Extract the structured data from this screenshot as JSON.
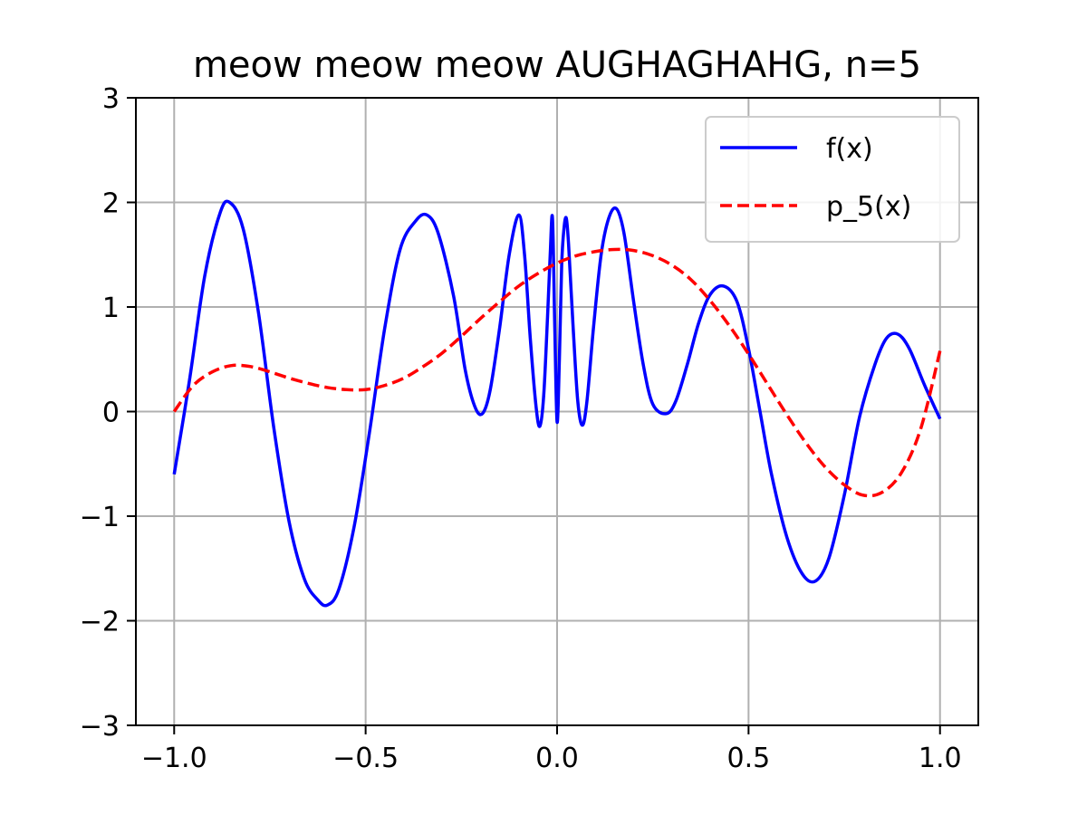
{
  "chart_data": {
    "type": "line",
    "title": "meow meow meow AUGHAGHAHG, n=5",
    "xlabel": "",
    "ylabel": "",
    "xlim": [
      -1.1,
      1.1
    ],
    "ylim": [
      -3,
      3
    ],
    "grid": true,
    "legend_position": "top-right",
    "x_ticks": [
      -1.0,
      -0.5,
      0.0,
      0.5,
      1.0
    ],
    "x_tick_labels": [
      "−1.0",
      "−0.5",
      "0.0",
      "0.5",
      "1.0"
    ],
    "y_ticks": [
      -3,
      -2,
      -1,
      0,
      1,
      2,
      3
    ],
    "y_tick_labels": [
      "−3",
      "−2",
      "−1",
      "0",
      "1",
      "2",
      "3"
    ],
    "series": [
      {
        "name": "f(x)",
        "color": "#0000ff",
        "style": "solid",
        "points": [
          [
            -1.0,
            -0.6
          ],
          [
            -0.96,
            0.3
          ],
          [
            -0.92,
            1.3
          ],
          [
            -0.88,
            1.9
          ],
          [
            -0.855,
            2.0
          ],
          [
            -0.82,
            1.75
          ],
          [
            -0.78,
            0.95
          ],
          [
            -0.74,
            -0.15
          ],
          [
            -0.7,
            -1.05
          ],
          [
            -0.66,
            -1.6
          ],
          [
            -0.625,
            -1.8
          ],
          [
            -0.6,
            -1.85
          ],
          [
            -0.57,
            -1.7
          ],
          [
            -0.53,
            -1.1
          ],
          [
            -0.49,
            -0.2
          ],
          [
            -0.45,
            0.8
          ],
          [
            -0.41,
            1.55
          ],
          [
            -0.37,
            1.82
          ],
          [
            -0.34,
            1.88
          ],
          [
            -0.31,
            1.7
          ],
          [
            -0.27,
            1.1
          ],
          [
            -0.24,
            0.4
          ],
          [
            -0.215,
            0.05
          ],
          [
            -0.195,
            -0.02
          ],
          [
            -0.175,
            0.2
          ],
          [
            -0.15,
            0.8
          ],
          [
            -0.125,
            1.5
          ],
          [
            -0.1,
            1.88
          ],
          [
            -0.085,
            1.5
          ],
          [
            -0.07,
            0.7
          ],
          [
            -0.055,
            0.05
          ],
          [
            -0.045,
            -0.14
          ],
          [
            -0.035,
            0.15
          ],
          [
            -0.025,
            0.9
          ],
          [
            -0.018,
            1.5
          ],
          [
            -0.012,
            1.85
          ],
          [
            -0.006,
            0.8
          ],
          [
            0.0,
            -0.1
          ],
          [
            0.006,
            0.5
          ],
          [
            0.012,
            1.4
          ],
          [
            0.018,
            1.75
          ],
          [
            0.024,
            1.85
          ],
          [
            0.03,
            1.6
          ],
          [
            0.042,
            0.8
          ],
          [
            0.054,
            0.1
          ],
          [
            0.066,
            -0.13
          ],
          [
            0.078,
            0.1
          ],
          [
            0.095,
            0.8
          ],
          [
            0.115,
            1.5
          ],
          [
            0.135,
            1.85
          ],
          [
            0.155,
            1.94
          ],
          [
            0.175,
            1.7
          ],
          [
            0.2,
            1.05
          ],
          [
            0.225,
            0.45
          ],
          [
            0.25,
            0.07
          ],
          [
            0.285,
            -0.02
          ],
          [
            0.31,
            0.1
          ],
          [
            0.34,
            0.45
          ],
          [
            0.37,
            0.85
          ],
          [
            0.4,
            1.12
          ],
          [
            0.435,
            1.2
          ],
          [
            0.47,
            1.05
          ],
          [
            0.5,
            0.6
          ],
          [
            0.53,
            0.0
          ],
          [
            0.56,
            -0.6
          ],
          [
            0.6,
            -1.2
          ],
          [
            0.64,
            -1.55
          ],
          [
            0.675,
            -1.62
          ],
          [
            0.71,
            -1.4
          ],
          [
            0.75,
            -0.8
          ],
          [
            0.79,
            -0.05
          ],
          [
            0.83,
            0.45
          ],
          [
            0.86,
            0.7
          ],
          [
            0.89,
            0.74
          ],
          [
            0.92,
            0.6
          ],
          [
            0.96,
            0.25
          ],
          [
            1.0,
            -0.07
          ]
        ]
      },
      {
        "name": "p_5(x)",
        "color": "#ff0000",
        "style": "dashed",
        "points": [
          [
            -1.0,
            0.0
          ],
          [
            -0.95,
            0.25
          ],
          [
            -0.9,
            0.38
          ],
          [
            -0.85,
            0.44
          ],
          [
            -0.8,
            0.43
          ],
          [
            -0.75,
            0.38
          ],
          [
            -0.7,
            0.32
          ],
          [
            -0.65,
            0.27
          ],
          [
            -0.6,
            0.23
          ],
          [
            -0.55,
            0.21
          ],
          [
            -0.5,
            0.21
          ],
          [
            -0.45,
            0.25
          ],
          [
            -0.4,
            0.32
          ],
          [
            -0.35,
            0.43
          ],
          [
            -0.3,
            0.56
          ],
          [
            -0.25,
            0.72
          ],
          [
            -0.2,
            0.89
          ],
          [
            -0.15,
            1.05
          ],
          [
            -0.1,
            1.2
          ],
          [
            -0.05,
            1.32
          ],
          [
            0.0,
            1.42
          ],
          [
            0.05,
            1.49
          ],
          [
            0.1,
            1.53
          ],
          [
            0.15,
            1.55
          ],
          [
            0.2,
            1.54
          ],
          [
            0.25,
            1.49
          ],
          [
            0.3,
            1.4
          ],
          [
            0.35,
            1.26
          ],
          [
            0.4,
            1.06
          ],
          [
            0.45,
            0.82
          ],
          [
            0.5,
            0.55
          ],
          [
            0.55,
            0.26
          ],
          [
            0.6,
            -0.03
          ],
          [
            0.65,
            -0.3
          ],
          [
            0.7,
            -0.53
          ],
          [
            0.75,
            -0.7
          ],
          [
            0.8,
            -0.8
          ],
          [
            0.85,
            -0.77
          ],
          [
            0.9,
            -0.58
          ],
          [
            0.95,
            -0.16
          ],
          [
            1.0,
            0.58
          ]
        ]
      }
    ]
  }
}
